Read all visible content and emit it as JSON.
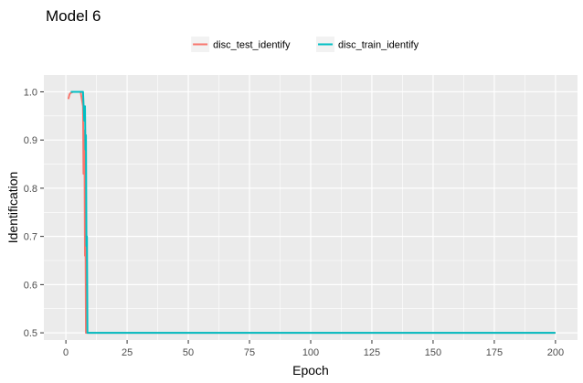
{
  "chart_data": {
    "type": "line",
    "title": "Model 6",
    "xlabel": "Epoch",
    "ylabel": "Identification",
    "xlim": [
      -9,
      209
    ],
    "ylim": [
      0.485,
      1.035
    ],
    "xticks": [
      0,
      25,
      50,
      75,
      100,
      125,
      150,
      175,
      200
    ],
    "yticks": [
      0.5,
      0.6,
      0.7,
      0.8,
      0.9,
      1.0
    ],
    "xtick_labels": [
      "0",
      "25",
      "50",
      "75",
      "100",
      "125",
      "150",
      "175",
      "200"
    ],
    "ytick_labels": [
      "0.5",
      "0.6",
      "0.7",
      "0.8",
      "0.9",
      "1.0"
    ],
    "legend_position": "top",
    "grid": true,
    "series": [
      {
        "name": "disc_test_identify",
        "color": "#F8766D",
        "x": [
          1,
          1.5,
          2,
          3,
          4,
          5,
          6,
          7,
          7.2,
          7.4,
          7.6,
          7.8,
          8,
          8.2,
          8.5,
          9,
          10,
          25,
          50,
          100,
          150,
          200
        ],
        "y": [
          0.985,
          0.995,
          0.998,
          1.0,
          1.0,
          1.0,
          1.0,
          0.97,
          0.83,
          0.92,
          0.87,
          0.66,
          0.72,
          0.5,
          0.5,
          0.5,
          0.5,
          0.5,
          0.5,
          0.5,
          0.5,
          0.5
        ]
      },
      {
        "name": "disc_train_identify",
        "color": "#00BFC4",
        "x": [
          2,
          3,
          4,
          5,
          6,
          7,
          7.5,
          7.8,
          8,
          8.2,
          8.4,
          8.6,
          8.8,
          9,
          10,
          25,
          50,
          100,
          150,
          200
        ],
        "y": [
          1.0,
          1.0,
          1.0,
          1.0,
          1.0,
          1.0,
          0.94,
          0.97,
          0.88,
          0.91,
          0.68,
          0.7,
          0.5,
          0.5,
          0.5,
          0.5,
          0.5,
          0.5,
          0.5,
          0.5
        ]
      }
    ]
  }
}
